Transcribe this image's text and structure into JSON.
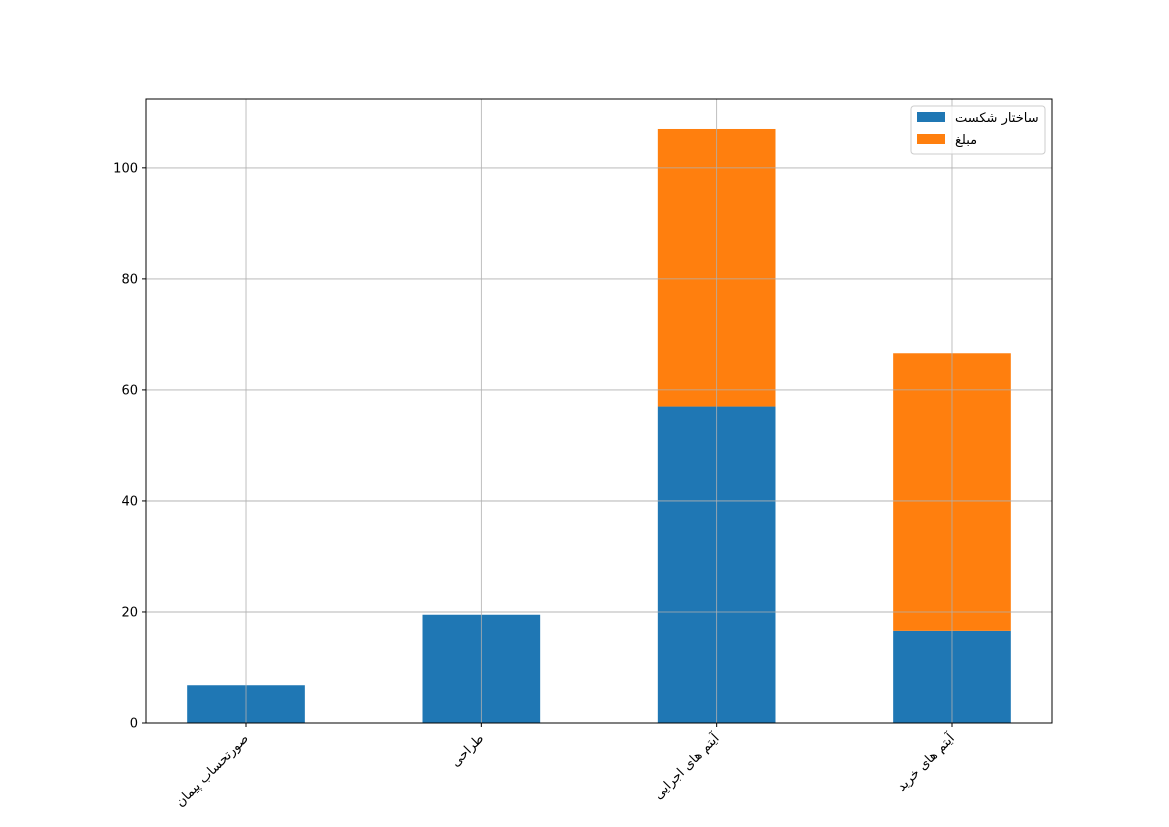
{
  "chart_data": {
    "type": "bar",
    "stacked": true,
    "title": "",
    "xlabel": "",
    "ylabel": "",
    "categories": [
      "صورتحساب پیمان",
      "طراحی",
      "آیتم های اجرایی",
      "آیتم های خرید"
    ],
    "series": [
      {
        "name": "ساختار شکست",
        "color": "#1f77b4",
        "values": [
          6.8,
          19.5,
          57,
          16.6
        ]
      },
      {
        "name": "مبلغ",
        "color": "#ff7f0e",
        "values": [
          0,
          0,
          50,
          50
        ]
      }
    ],
    "ylim": [
      0,
      112.4
    ],
    "yticks": [
      0,
      20,
      40,
      60,
      80,
      100
    ],
    "grid": true,
    "legend": "top-right",
    "xtick_rotation": 45
  }
}
